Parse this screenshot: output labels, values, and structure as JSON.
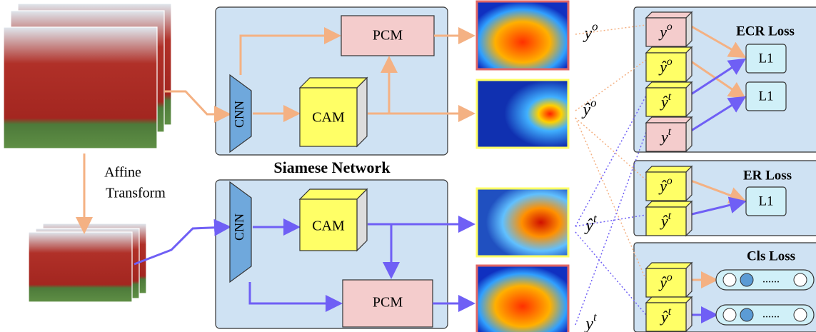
{
  "siamese_title": "Siamese Network",
  "transform": [
    "Affine",
    "Transform"
  ],
  "top_branch": {
    "cnn": "CNN",
    "cam": "CAM",
    "pcm": "PCM"
  },
  "bottom_branch": {
    "cnn": "CNN",
    "cam": "CAM",
    "pcm": "PCM"
  },
  "outputs": [
    {
      "base": "y",
      "sup": "o"
    },
    {
      "base": "ŷ",
      "sup": "o"
    },
    {
      "base": "ŷ",
      "sup": "t"
    },
    {
      "base": "y",
      "sup": "t"
    }
  ],
  "ecr": {
    "title": "ECR Loss",
    "inputs": [
      {
        "base": "y",
        "sup": "o"
      },
      {
        "base": "ŷ",
        "sup": "o"
      },
      {
        "base": "ŷ",
        "sup": "t"
      },
      {
        "base": "y",
        "sup": "t"
      }
    ],
    "ops": [
      "L1",
      "L1"
    ]
  },
  "er": {
    "title": "ER Loss",
    "inputs": [
      {
        "base": "ŷ",
        "sup": "o"
      },
      {
        "base": "ŷ",
        "sup": "t"
      }
    ],
    "ops": [
      "L1"
    ]
  },
  "cls": {
    "title": "Cls Loss",
    "inputs": [
      {
        "base": "ŷ",
        "sup": "o"
      },
      {
        "base": "ŷ",
        "sup": "t"
      }
    ],
    "dots": [
      "......",
      "......"
    ]
  }
}
